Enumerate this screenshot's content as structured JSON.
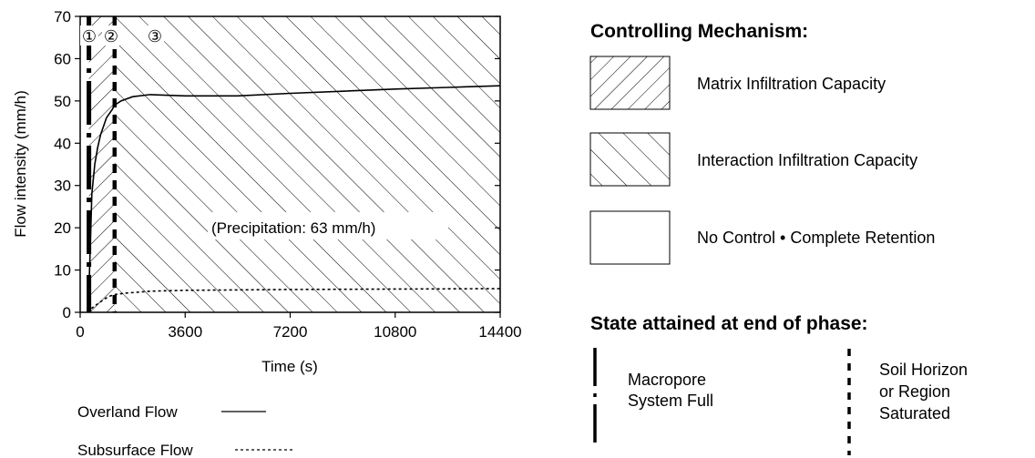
{
  "chart_data": {
    "type": "line",
    "xlabel": "Time (s)",
    "ylabel": "Flow intensity (mm/h)",
    "xlim": [
      0,
      14400
    ],
    "ylim": [
      0,
      70
    ],
    "x_ticks": [
      "0",
      "3600",
      "7200",
      "10800",
      "14400"
    ],
    "y_ticks": [
      "0",
      "10",
      "20",
      "30",
      "40",
      "50",
      "60",
      "70"
    ],
    "annotation": "(Precipitation: 63 mm/h)",
    "phase_markers": [
      "①",
      "②",
      "③"
    ],
    "phase_boundaries": [
      300,
      1180
    ],
    "series": [
      {
        "name": "Overland Flow",
        "style": "solid",
        "x": [
          250,
          300,
          400,
          500,
          600,
          700,
          800,
          900,
          1000,
          1100,
          1180,
          1400,
          1800,
          2400,
          3600,
          5400,
          7200,
          9000,
          10800,
          12600,
          14400
        ],
        "y": [
          0,
          5,
          28,
          35,
          39,
          42,
          44,
          46,
          47,
          48,
          49,
          50,
          51,
          51.5,
          51.2,
          51.2,
          51.8,
          52.3,
          52.8,
          53.2,
          53.6
        ]
      },
      {
        "name": "Subsurface Flow",
        "style": "dashed",
        "x": [
          250,
          400,
          600,
          800,
          1000,
          1180,
          1500,
          2400,
          3600,
          7200,
          10800,
          14400
        ],
        "y": [
          0,
          1,
          2,
          3,
          3.8,
          4.2,
          4.5,
          5,
          5.2,
          5.4,
          5.5,
          5.6
        ]
      }
    ]
  },
  "legend_lines": {
    "overland": "Overland Flow",
    "subsurface": "Subsurface Flow"
  },
  "mechanism": {
    "title": "Controlling Mechanism:",
    "items": [
      {
        "label": "Matrix Infiltration Capacity"
      },
      {
        "label": "Interaction Infiltration Capacity"
      },
      {
        "label": "No Control • Complete Retention"
      }
    ]
  },
  "state": {
    "title": "State attained at end of phase:",
    "macropore_line1": "Macropore",
    "macropore_line2": "System Full",
    "soil_line1": "Soil Horizon",
    "soil_line2": "or Region",
    "soil_line3": "Saturated"
  }
}
